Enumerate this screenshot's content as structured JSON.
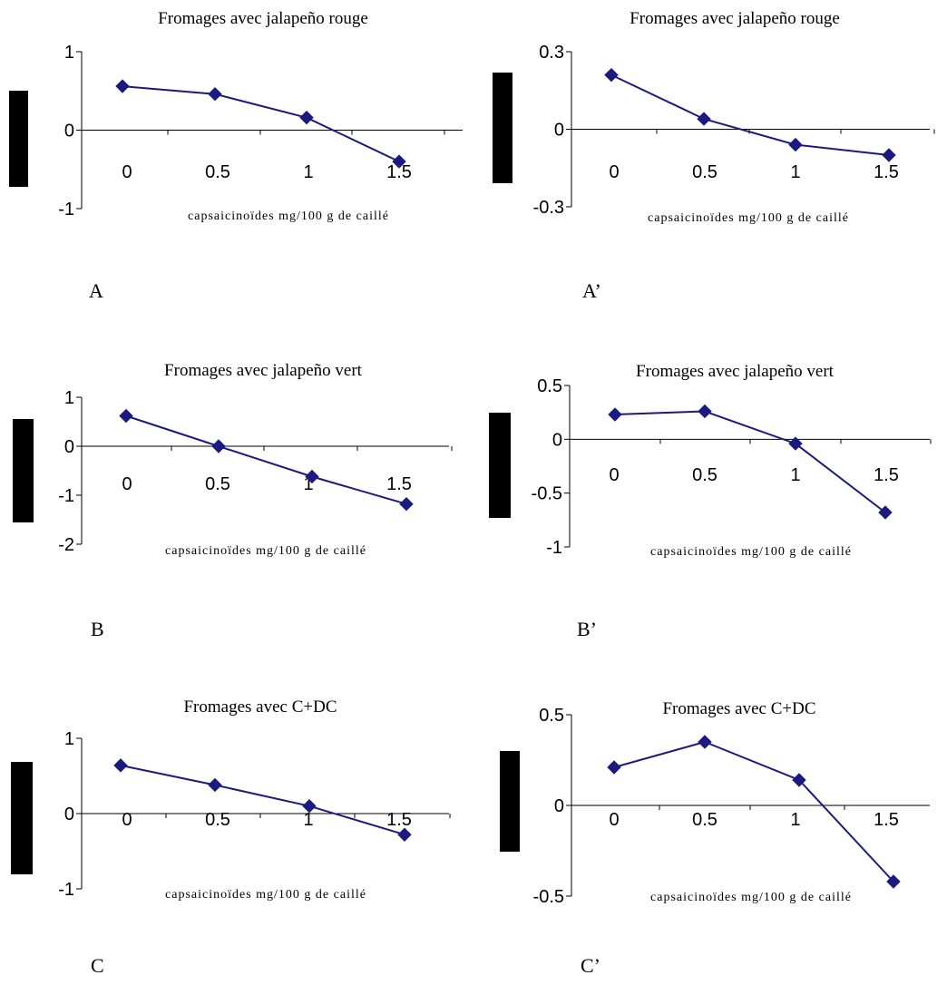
{
  "colors": {
    "series": "#1a1a80",
    "axis": "#000000",
    "ylabel_box": "#000000"
  },
  "chart_data": [
    {
      "panel": "A",
      "type": "line",
      "title": "Fromages avec jalapeño rouge",
      "xlabel": "capsaicinoïdes mg/100 g de caillé",
      "categories": [
        "0",
        "0.5",
        "1",
        "1.5"
      ],
      "yticks": [
        "1",
        "0",
        "-1"
      ],
      "ylim": [
        -1,
        1
      ],
      "series": [
        {
          "values": [
            0.56,
            0.46,
            0.16,
            -0.4
          ]
        }
      ]
    },
    {
      "panel": "A’",
      "type": "line",
      "title": "Fromages avec jalapeño rouge",
      "xlabel": "capsaicinoïdes mg/100 g de caillé",
      "categories": [
        "0",
        "0.5",
        "1",
        "1.5"
      ],
      "yticks": [
        "0.3",
        "0",
        "-0.3"
      ],
      "ylim": [
        -0.3,
        0.3
      ],
      "series": [
        {
          "values": [
            0.21,
            0.04,
            -0.06,
            -0.1
          ]
        }
      ]
    },
    {
      "panel": "B",
      "type": "line",
      "title": "Fromages avec jalapeño vert",
      "xlabel": "capsaicinoïdes mg/100 g de caillé",
      "categories": [
        "0",
        "0.5",
        "1",
        "1.5"
      ],
      "yticks": [
        "1",
        "0",
        "-1",
        "-2"
      ],
      "ylim": [
        -2,
        1
      ],
      "series": [
        {
          "values": [
            0.62,
            0.0,
            -0.62,
            -1.18
          ]
        }
      ]
    },
    {
      "panel": "B’",
      "type": "line",
      "title": "Fromages avec jalapeño vert",
      "xlabel": "capsaicinoïdes mg/100 g de caillé",
      "categories": [
        "0",
        "0.5",
        "1",
        "1.5"
      ],
      "yticks": [
        "0.5",
        "0",
        "-0.5",
        "-1"
      ],
      "ylim": [
        -1,
        0.5
      ],
      "series": [
        {
          "values": [
            0.23,
            0.26,
            -0.04,
            -0.68
          ]
        }
      ]
    },
    {
      "panel": "C",
      "type": "line",
      "title": "Fromages avec C+DC",
      "xlabel": "capsaicinoïdes mg/100 g de caillé",
      "categories": [
        "0",
        "0.5",
        "1",
        "1.5"
      ],
      "yticks": [
        "1",
        "0",
        "-1"
      ],
      "ylim": [
        -1,
        1
      ],
      "series": [
        {
          "values": [
            0.64,
            0.38,
            0.1,
            -0.28
          ]
        }
      ]
    },
    {
      "panel": "C’",
      "type": "line",
      "title": "Fromages avec C+DC",
      "xlabel": "capsaicinoïdes mg/100 g de caillé",
      "categories": [
        "0",
        "0.5",
        "1",
        "1.5"
      ],
      "yticks": [
        "0.5",
        "0",
        "-0.5"
      ],
      "ylim": [
        -0.5,
        0.5
      ],
      "series": [
        {
          "values": [
            0.21,
            0.35,
            0.14,
            -0.42
          ]
        }
      ]
    }
  ]
}
